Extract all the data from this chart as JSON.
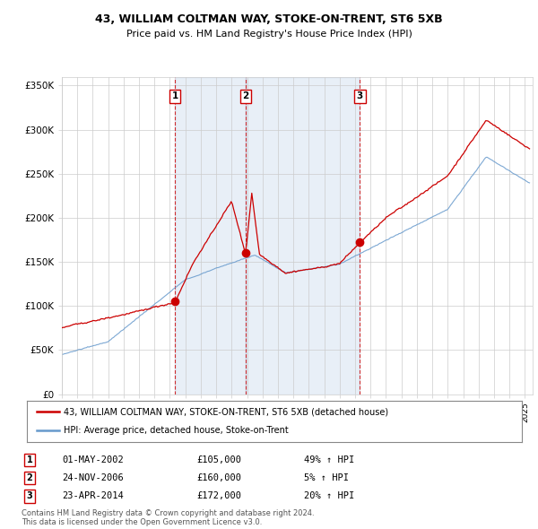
{
  "title": "43, WILLIAM COLTMAN WAY, STOKE-ON-TRENT, ST6 5XB",
  "subtitle": "Price paid vs. HM Land Registry's House Price Index (HPI)",
  "ylabel_ticks": [
    "£0",
    "£50K",
    "£100K",
    "£150K",
    "£200K",
    "£250K",
    "£300K",
    "£350K"
  ],
  "ylim": [
    0,
    360000
  ],
  "xlim_start": 1995.0,
  "xlim_end": 2025.5,
  "sale_dates": [
    2002.33,
    2006.9,
    2014.31
  ],
  "sale_prices": [
    105000,
    160000,
    172000
  ],
  "sale_labels": [
    "1",
    "2",
    "3"
  ],
  "sale_date_strs": [
    "01-MAY-2002",
    "24-NOV-2006",
    "23-APR-2014"
  ],
  "sale_price_strs": [
    "£105,000",
    "£160,000",
    "£172,000"
  ],
  "sale_hpi_strs": [
    "49% ↑ HPI",
    "5% ↑ HPI",
    "20% ↑ HPI"
  ],
  "legend_red_label": "43, WILLIAM COLTMAN WAY, STOKE-ON-TRENT, ST6 5XB (detached house)",
  "legend_blue_label": "HPI: Average price, detached house, Stoke-on-Trent",
  "footnote": "Contains HM Land Registry data © Crown copyright and database right 2024.\nThis data is licensed under the Open Government Licence v3.0.",
  "red_color": "#cc0000",
  "blue_color": "#6699cc",
  "shade_color": "#ddeeff",
  "grid_color": "#cccccc",
  "background_color": "#ffffff"
}
